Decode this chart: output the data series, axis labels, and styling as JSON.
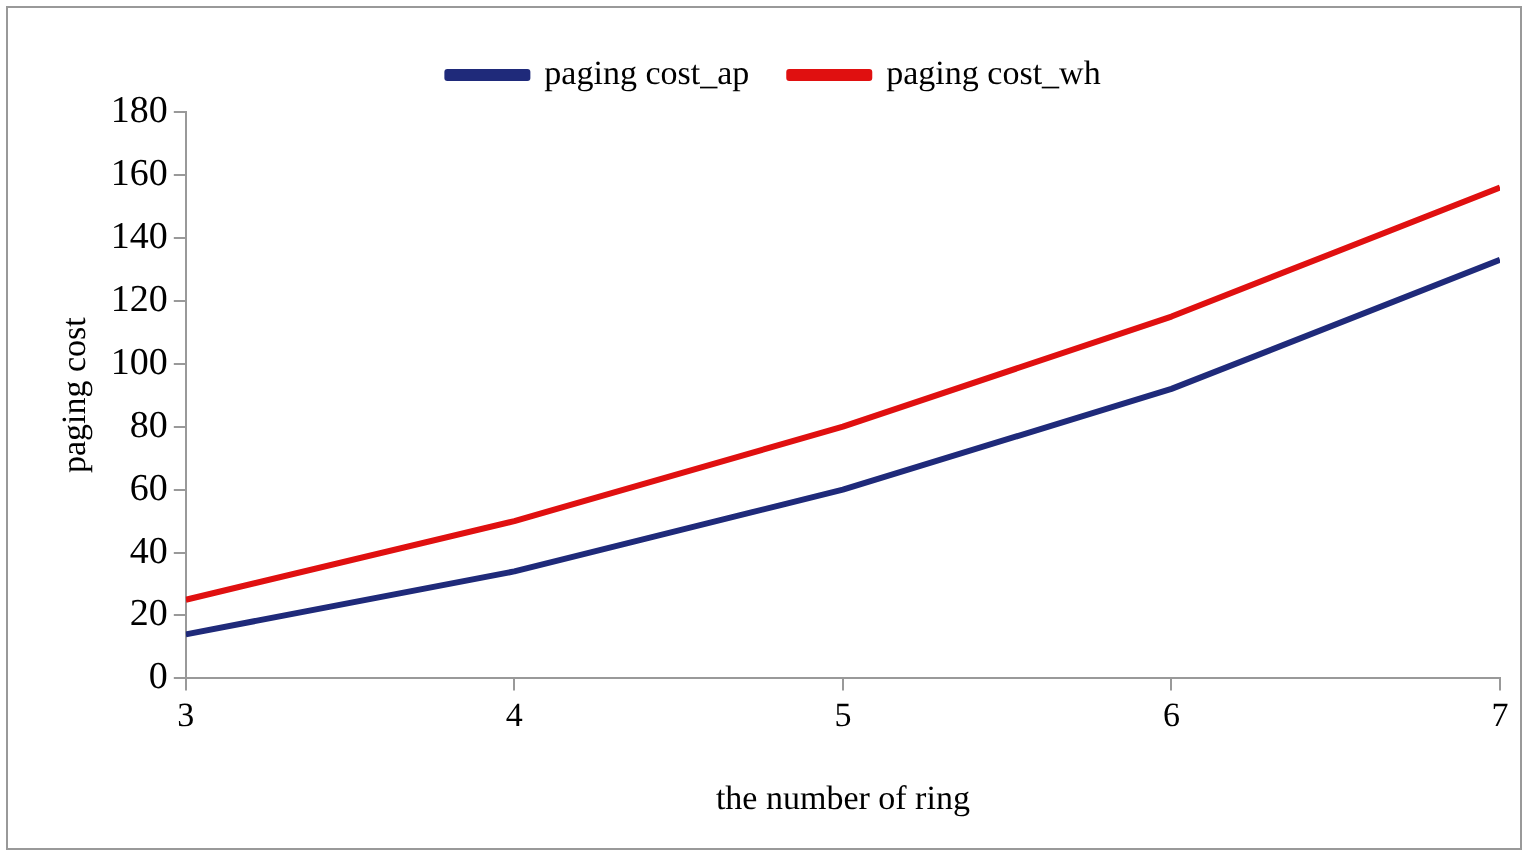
{
  "chart_data": {
    "type": "line",
    "xlabel": "the number of ring",
    "ylabel": "paging cost",
    "x": [
      3,
      4,
      5,
      6,
      7
    ],
    "xlim": [
      3,
      7
    ],
    "xticks": [
      3,
      4,
      5,
      6,
      7
    ],
    "ylim": [
      0,
      180
    ],
    "yticks": [
      0,
      20,
      40,
      60,
      80,
      100,
      120,
      140,
      160,
      180
    ],
    "grid": false,
    "legend": "top",
    "marker": "none",
    "line_style": "solid",
    "series": [
      {
        "name": "paging cost_ap",
        "color": "#1f2a7a",
        "values": [
          14,
          34,
          60,
          92,
          133
        ]
      },
      {
        "name": "paging cost_wh",
        "color": "#e01010",
        "values": [
          25,
          50,
          80,
          115,
          156
        ]
      }
    ]
  }
}
